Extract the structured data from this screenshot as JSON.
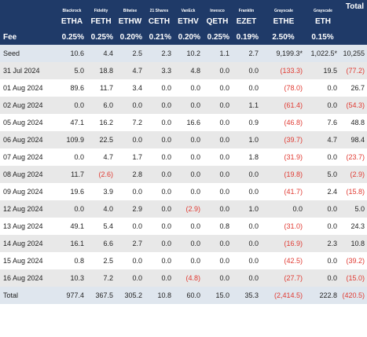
{
  "issuers": [
    "Blackrock",
    "Fidelity",
    "Bitwise",
    "21 Shares",
    "VanEck",
    "Invesco",
    "Franklin",
    "Grayscale",
    "Grayscale"
  ],
  "total_label": "Total",
  "tickers": [
    "ETHA",
    "FETH",
    "ETHW",
    "CETH",
    "ETHV",
    "QETH",
    "EZET",
    "ETHE",
    "ETH"
  ],
  "fee_label": "Fee",
  "fees": [
    "0.25%",
    "0.25%",
    "0.20%",
    "0.21%",
    "0.20%",
    "0.25%",
    "0.19%",
    "2.50%",
    "0.15%"
  ],
  "rows": [
    {
      "date": "Seed",
      "values": [
        "10.6",
        "4.4",
        "2.5",
        "2.3",
        "10.2",
        "1.1",
        "2.7",
        "9,199.3*",
        "1,022.5*",
        "10,255"
      ]
    },
    {
      "date": "31 Jul 2024",
      "values": [
        "5.0",
        "18.8",
        "4.7",
        "3.3",
        "4.8",
        "0.0",
        "0.0",
        "(133.3)",
        "19.5",
        "(77.2)"
      ]
    },
    {
      "date": "01 Aug 2024",
      "values": [
        "89.6",
        "11.7",
        "3.4",
        "0.0",
        "0.0",
        "0.0",
        "0.0",
        "(78.0)",
        "0.0",
        "26.7"
      ]
    },
    {
      "date": "02 Aug 2024",
      "values": [
        "0.0",
        "6.0",
        "0.0",
        "0.0",
        "0.0",
        "0.0",
        "1.1",
        "(61.4)",
        "0.0",
        "(54.3)"
      ]
    },
    {
      "date": "05 Aug 2024",
      "values": [
        "47.1",
        "16.2",
        "7.2",
        "0.0",
        "16.6",
        "0.0",
        "0.9",
        "(46.8)",
        "7.6",
        "48.8"
      ]
    },
    {
      "date": "06 Aug 2024",
      "values": [
        "109.9",
        "22.5",
        "0.0",
        "0.0",
        "0.0",
        "0.0",
        "1.0",
        "(39.7)",
        "4.7",
        "98.4"
      ]
    },
    {
      "date": "07 Aug 2024",
      "values": [
        "0.0",
        "4.7",
        "1.7",
        "0.0",
        "0.0",
        "0.0",
        "1.8",
        "(31.9)",
        "0.0",
        "(23.7)"
      ]
    },
    {
      "date": "08 Aug 2024",
      "values": [
        "11.7",
        "(2.6)",
        "2.8",
        "0.0",
        "0.0",
        "0.0",
        "0.0",
        "(19.8)",
        "5.0",
        "(2.9)"
      ]
    },
    {
      "date": "09 Aug 2024",
      "values": [
        "19.6",
        "3.9",
        "0.0",
        "0.0",
        "0.0",
        "0.0",
        "0.0",
        "(41.7)",
        "2.4",
        "(15.8)"
      ]
    },
    {
      "date": "12 Aug 2024",
      "values": [
        "0.0",
        "4.0",
        "2.9",
        "0.0",
        "(2.9)",
        "0.0",
        "1.0",
        "0.0",
        "0.0",
        "5.0"
      ]
    },
    {
      "date": "13 Aug 2024",
      "values": [
        "49.1",
        "5.4",
        "0.0",
        "0.0",
        "0.0",
        "0.8",
        "0.0",
        "(31.0)",
        "0.0",
        "24.3"
      ]
    },
    {
      "date": "14 Aug 2024",
      "values": [
        "16.1",
        "6.6",
        "2.7",
        "0.0",
        "0.0",
        "0.0",
        "0.0",
        "(16.9)",
        "2.3",
        "10.8"
      ]
    },
    {
      "date": "15 Aug 2024",
      "values": [
        "0.8",
        "2.5",
        "0.0",
        "0.0",
        "0.0",
        "0.0",
        "0.0",
        "(42.5)",
        "0.0",
        "(39.2)"
      ]
    },
    {
      "date": "16 Aug 2024",
      "values": [
        "10.3",
        "7.2",
        "0.0",
        "0.0",
        "(4.8)",
        "0.0",
        "0.0",
        "(27.7)",
        "0.0",
        "(15.0)"
      ]
    }
  ],
  "totals": {
    "label": "Total",
    "values": [
      "977.4",
      "367.5",
      "305.2",
      "10.8",
      "60.0",
      "15.0",
      "35.3",
      "(2,414.5)",
      "222.8",
      "(420.5)"
    ]
  },
  "colors": {
    "header_bg": "#1f3a68",
    "negative": "#e03a32",
    "stripe": "#e8e8e8",
    "highlight": "#dfe6ee"
  }
}
